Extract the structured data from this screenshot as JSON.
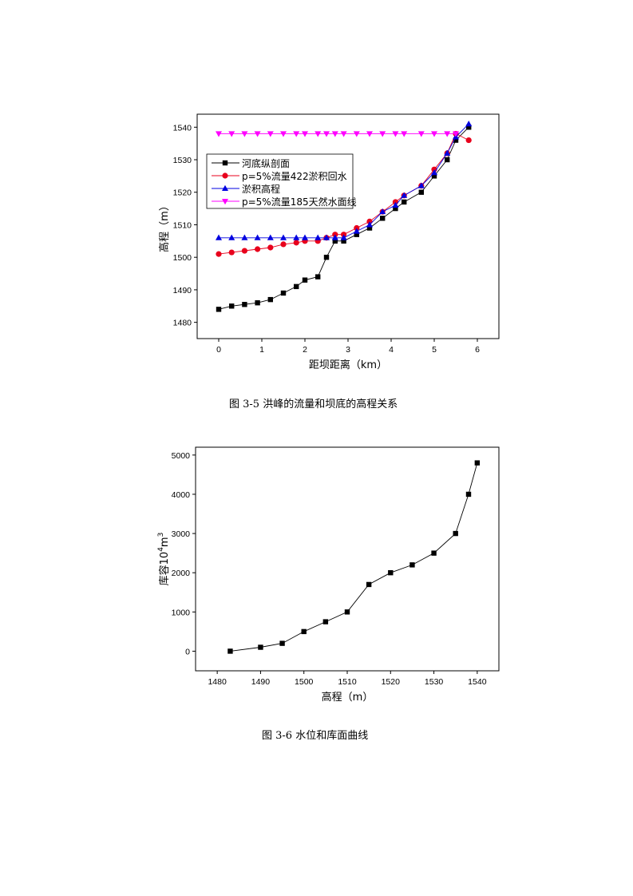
{
  "chart_data": [
    {
      "type": "line",
      "xlabel": "距坝距离（km）",
      "ylabel": "高程（m）",
      "xlim": [
        -0.5,
        6.5
      ],
      "ylim": [
        1475,
        1544
      ],
      "xticks": [
        0,
        1,
        2,
        3,
        4,
        5,
        6
      ],
      "yticks": [
        1480,
        1490,
        1500,
        1510,
        1520,
        1530,
        1540
      ],
      "legend_position": "top-left",
      "series": [
        {
          "name": "河底纵剖面",
          "color": "#000000",
          "marker": "square",
          "x": [
            0,
            0.3,
            0.6,
            0.9,
            1.2,
            1.5,
            1.8,
            2.0,
            2.3,
            2.5,
            2.7,
            2.9,
            3.2,
            3.5,
            3.8,
            4.1,
            4.3,
            4.7,
            5.0,
            5.3,
            5.5,
            5.8
          ],
          "y": [
            1484,
            1485,
            1485.5,
            1486,
            1487,
            1489,
            1491,
            1493,
            1494,
            1500,
            1505,
            1505,
            1507,
            1509,
            1512,
            1515,
            1517,
            1520,
            1525,
            1530,
            1536,
            1540
          ]
        },
        {
          "name": "p=5%流量422淤积回水",
          "color": "#e8001c",
          "marker": "circle",
          "x": [
            0,
            0.3,
            0.6,
            0.9,
            1.2,
            1.5,
            1.8,
            2.0,
            2.3,
            2.5,
            2.7,
            2.9,
            3.2,
            3.5,
            3.8,
            4.1,
            4.3,
            4.7,
            5.0,
            5.3,
            5.5,
            5.8
          ],
          "y": [
            1501,
            1501.5,
            1502,
            1502.5,
            1503,
            1504,
            1504.5,
            1505,
            1505,
            1506,
            1507,
            1507,
            1509,
            1511,
            1514,
            1517,
            1519,
            1522,
            1527,
            1532,
            1538,
            1536
          ]
        },
        {
          "name": "淤积高程",
          "color": "#0000e0",
          "marker": "triangle-up",
          "x": [
            0,
            0.3,
            0.6,
            0.9,
            1.2,
            1.5,
            1.8,
            2.0,
            2.3,
            2.5,
            2.7,
            2.9,
            3.2,
            3.5,
            3.8,
            4.1,
            4.3,
            4.7,
            5.0,
            5.3,
            5.5,
            5.8
          ],
          "y": [
            1506,
            1506,
            1506,
            1506,
            1506,
            1506,
            1506,
            1506,
            1506,
            1506,
            1506,
            1506,
            1508,
            1510,
            1514,
            1516,
            1519,
            1522,
            1526,
            1532,
            1537,
            1541
          ]
        },
        {
          "name": "p=5%流量185天然水面线",
          "color": "#ff00ff",
          "marker": "triangle-down",
          "x": [
            0,
            0.3,
            0.6,
            0.9,
            1.2,
            1.5,
            1.8,
            2.0,
            2.3,
            2.5,
            2.7,
            2.9,
            3.2,
            3.5,
            3.8,
            4.1,
            4.3,
            4.7,
            5.0,
            5.3,
            5.5
          ],
          "y": [
            1538,
            1538,
            1538,
            1538,
            1538,
            1538,
            1538,
            1538,
            1538,
            1538,
            1538,
            1538,
            1538,
            1538,
            1538,
            1538,
            1538,
            1538,
            1538,
            1538,
            1538
          ]
        }
      ]
    },
    {
      "type": "line",
      "xlabel": "高程（m）",
      "ylabel_main": "库容10",
      "ylabel_sup1": "4",
      "ylabel_mid": "m",
      "ylabel_sup2": "3",
      "xlim": [
        1475,
        1545
      ],
      "ylim": [
        -500,
        5200
      ],
      "xticks": [
        1480,
        1490,
        1500,
        1510,
        1520,
        1530,
        1540
      ],
      "yticks": [
        0,
        1000,
        2000,
        3000,
        4000,
        5000
      ],
      "series": [
        {
          "color": "#000000",
          "marker": "square",
          "x": [
            1483,
            1490,
            1495,
            1500,
            1505,
            1510,
            1515,
            1520,
            1525,
            1530,
            1535,
            1538,
            1540
          ],
          "y": [
            0,
            100,
            200,
            500,
            750,
            1000,
            1700,
            2000,
            2200,
            2500,
            3000,
            4000,
            4800
          ]
        }
      ]
    }
  ],
  "captions": {
    "fig1": "图 3-5  洪峰的流量和坝底的高程关系",
    "fig2": "图 3-6  水位和库面曲线"
  }
}
